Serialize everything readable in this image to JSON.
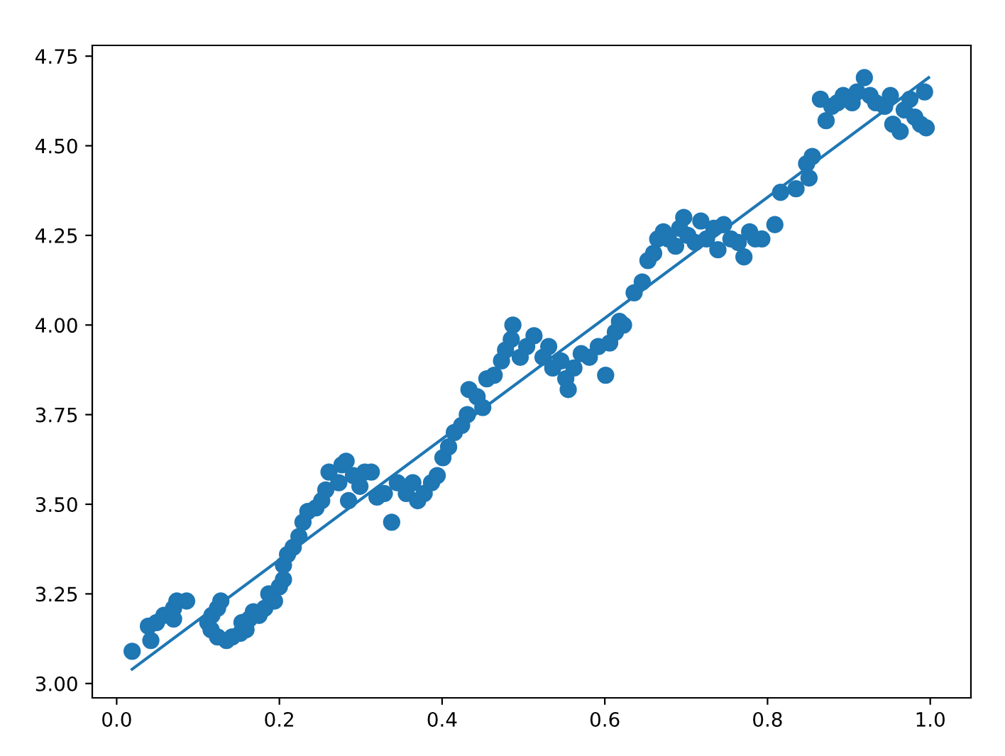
{
  "chart_data": {
    "type": "scatter",
    "xlim": [
      -0.03,
      1.05
    ],
    "ylim": [
      2.96,
      4.78
    ],
    "xticks": [
      {
        "value": 0,
        "label": "0.0"
      },
      {
        "value": 0.2,
        "label": "0.2"
      },
      {
        "value": 0.4,
        "label": "0.4"
      },
      {
        "value": 0.6,
        "label": "0.6"
      },
      {
        "value": 0.8,
        "label": "0.8"
      },
      {
        "value": 1.0,
        "label": "1.0"
      }
    ],
    "yticks": [
      {
        "value": 3.0,
        "label": "3.00"
      },
      {
        "value": 3.25,
        "label": "3.25"
      },
      {
        "value": 3.5,
        "label": "3.50"
      },
      {
        "value": 3.75,
        "label": "3.75"
      },
      {
        "value": 4.0,
        "label": "4.00"
      },
      {
        "value": 4.25,
        "label": "4.25"
      },
      {
        "value": 4.5,
        "label": "4.50"
      },
      {
        "value": 4.75,
        "label": "4.75"
      }
    ],
    "grid": false,
    "series": [
      {
        "color": "#1f77b4",
        "marker": "circle",
        "x": [
          0.019,
          0.042,
          0.039,
          0.049,
          0.058,
          0.07,
          0.074,
          0.07,
          0.086,
          0.112,
          0.117,
          0.124,
          0.128,
          0.116,
          0.124,
          0.135,
          0.142,
          0.152,
          0.159,
          0.154,
          0.163,
          0.168,
          0.175,
          0.182,
          0.187,
          0.194,
          0.2,
          0.205,
          0.205,
          0.21,
          0.217,
          0.224,
          0.229,
          0.235,
          0.245,
          0.252,
          0.257,
          0.261,
          0.273,
          0.277,
          0.282,
          0.285,
          0.291,
          0.299,
          0.305,
          0.313,
          0.32,
          0.329,
          0.338,
          0.345,
          0.356,
          0.364,
          0.37,
          0.378,
          0.387,
          0.394,
          0.401,
          0.408,
          0.415,
          0.424,
          0.431,
          0.433,
          0.443,
          0.45,
          0.455,
          0.464,
          0.473,
          0.478,
          0.485,
          0.487,
          0.496,
          0.504,
          0.513,
          0.524,
          0.531,
          0.536,
          0.546,
          0.552,
          0.555,
          0.562,
          0.571,
          0.581,
          0.592,
          0.601,
          0.606,
          0.613,
          0.618,
          0.623,
          0.636,
          0.646,
          0.653,
          0.66,
          0.665,
          0.672,
          0.678,
          0.687,
          0.692,
          0.697,
          0.702,
          0.711,
          0.718,
          0.725,
          0.734,
          0.739,
          0.746,
          0.755,
          0.764,
          0.771,
          0.778,
          0.785,
          0.793,
          0.809,
          0.816,
          0.835,
          0.848,
          0.855,
          0.851,
          0.865,
          0.872,
          0.879,
          0.886,
          0.893,
          0.904,
          0.91,
          0.919,
          0.926,
          0.933,
          0.944,
          0.951,
          0.954,
          0.963,
          0.968,
          0.975,
          0.981,
          0.988,
          0.993,
          0.995
        ],
        "values": [
          3.09,
          3.12,
          3.16,
          3.17,
          3.19,
          3.21,
          3.23,
          3.18,
          3.23,
          3.17,
          3.19,
          3.21,
          3.23,
          3.15,
          3.13,
          3.12,
          3.13,
          3.14,
          3.15,
          3.17,
          3.18,
          3.2,
          3.19,
          3.21,
          3.25,
          3.23,
          3.27,
          3.29,
          3.33,
          3.36,
          3.38,
          3.41,
          3.45,
          3.48,
          3.49,
          3.51,
          3.54,
          3.59,
          3.56,
          3.61,
          3.62,
          3.51,
          3.58,
          3.55,
          3.59,
          3.59,
          3.52,
          3.53,
          3.45,
          3.56,
          3.53,
          3.56,
          3.51,
          3.53,
          3.56,
          3.58,
          3.63,
          3.66,
          3.7,
          3.72,
          3.75,
          3.82,
          3.8,
          3.77,
          3.85,
          3.86,
          3.9,
          3.93,
          3.96,
          4.0,
          3.91,
          3.94,
          3.97,
          3.91,
          3.94,
          3.88,
          3.9,
          3.85,
          3.82,
          3.88,
          3.92,
          3.91,
          3.94,
          3.86,
          3.95,
          3.98,
          4.01,
          4.0,
          4.09,
          4.12,
          4.18,
          4.2,
          4.24,
          4.26,
          4.24,
          4.22,
          4.27,
          4.3,
          4.25,
          4.23,
          4.29,
          4.24,
          4.27,
          4.21,
          4.28,
          4.24,
          4.23,
          4.19,
          4.26,
          4.24,
          4.24,
          4.28,
          4.37,
          4.38,
          4.45,
          4.47,
          4.41,
          4.63,
          4.57,
          4.61,
          4.62,
          4.64,
          4.62,
          4.65,
          4.69,
          4.64,
          4.62,
          4.61,
          4.64,
          4.56,
          4.54,
          4.6,
          4.63,
          4.58,
          4.56,
          4.65,
          4.55
        ]
      },
      {
        "type": "line",
        "color": "#1f77b4",
        "line_style": "solid",
        "x": [
          0.019,
          0.998
        ],
        "values": [
          3.04,
          4.69
        ]
      }
    ]
  }
}
